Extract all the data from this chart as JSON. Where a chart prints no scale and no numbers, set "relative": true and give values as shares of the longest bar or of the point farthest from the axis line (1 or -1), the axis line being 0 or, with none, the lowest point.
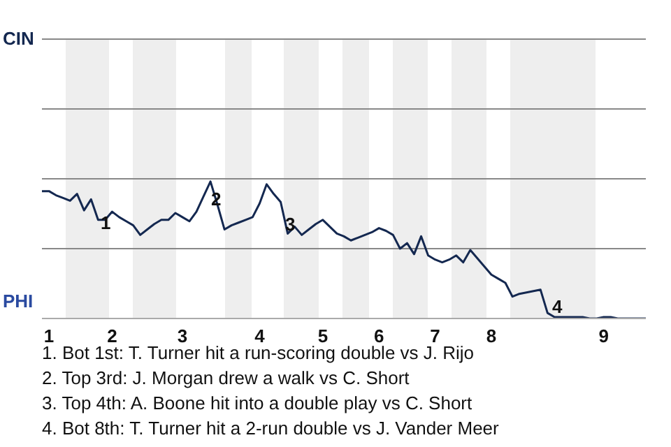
{
  "chart_data": {
    "type": "line",
    "relative": true,
    "categories": [
      null,
      "1",
      null,
      null,
      null,
      null,
      null,
      null,
      null,
      null,
      "2",
      null,
      null,
      null,
      null,
      null,
      null,
      null,
      null,
      null,
      "3",
      null,
      null,
      null,
      null,
      null,
      null,
      null,
      null,
      null,
      null,
      "4",
      null,
      null,
      null,
      null,
      null,
      null,
      null,
      null,
      "5",
      null,
      null,
      null,
      null,
      null,
      null,
      null,
      "6",
      null,
      null,
      null,
      null,
      null,
      null,
      null,
      "7",
      null,
      null,
      null,
      null,
      null,
      null,
      null,
      "8",
      null,
      null,
      null,
      null,
      null,
      null,
      null,
      null,
      null,
      null,
      null,
      null,
      null,
      null,
      null,
      "9",
      null,
      null,
      null,
      null,
      null,
      null
    ],
    "series": [
      {
        "color": "#142850",
        "values": [
          0.93,
          0.93,
          0.9,
          0.88,
          0.86,
          0.91,
          0.79,
          0.87,
          0.72,
          0.72,
          0.78,
          0.74,
          0.71,
          0.68,
          0.61,
          0.65,
          0.69,
          0.72,
          0.72,
          0.77,
          0.74,
          0.71,
          0.78,
          0.89,
          1,
          0.83,
          0.65,
          0.68,
          0.7,
          0.72,
          0.74,
          0.84,
          0.98,
          0.91,
          0.85,
          0.62,
          0.67,
          0.61,
          0.65,
          0.69,
          0.72,
          0.67,
          0.62,
          0.6,
          0.57,
          0.59,
          0.61,
          0.63,
          0.66,
          0.64,
          0.61,
          0.51,
          0.55,
          0.47,
          0.6,
          0.46,
          0.43,
          0.41,
          0.43,
          0.46,
          0.41,
          0.5,
          0.44,
          0.38,
          0.32,
          0.29,
          0.26,
          0.16,
          0.18,
          0.19,
          0.2,
          0.21,
          0.04,
          0.01,
          0.01,
          0.01,
          0.01,
          0.01,
          0,
          0,
          0.01,
          0.01,
          0,
          0,
          0,
          0,
          0
        ]
      }
    ],
    "marker": "none",
    "ref_lines": [
      {
        "axis": "y",
        "value": 0.51,
        "color": "#888888"
      },
      {
        "axis": "y",
        "value": 1.02,
        "color": "#888888"
      },
      {
        "axis": "y",
        "value": 1.53,
        "color": "#888888"
      },
      {
        "axis": "y",
        "value": 2.04,
        "color": "#888888"
      }
    ],
    "annotations": [
      "CIN",
      "PHI",
      "1",
      "2",
      "3",
      "4",
      "1. Bot 1st: T. Turner hit a run-scoring double vs J. Rijo",
      "2. Top 3rd: J. Morgan drew a walk vs C. Short",
      "3. Top 4th: A. Boone hit into a double play vs C. Short",
      "4. Bot 8th: T. Turner hit a 2-run double vs J. Vander Meer"
    ]
  }
}
